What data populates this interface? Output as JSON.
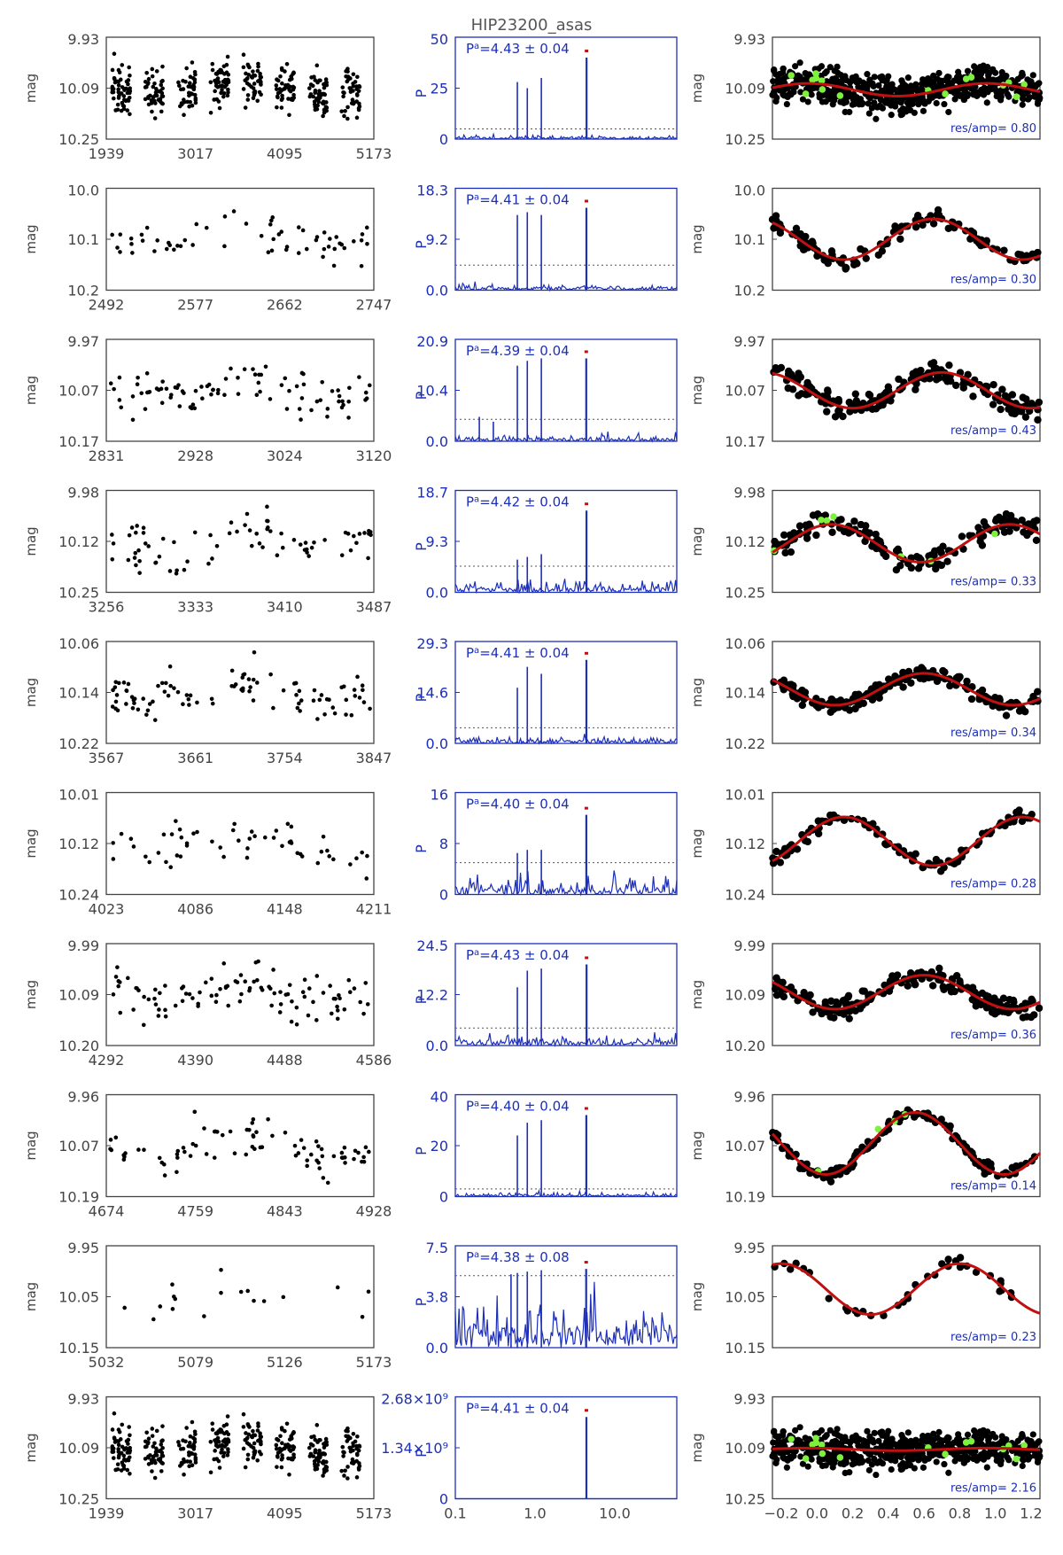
{
  "title": "HIP23200_asas",
  "colors": {
    "black": "#000000",
    "blue": "#1c2fb8",
    "red": "#c01010",
    "green": "#7cf23c",
    "frame": "#444444"
  },
  "labels": {
    "mag": "mag",
    "pn": "P",
    "pn_sub": "N",
    "res_prefix": "res/amp=",
    "period_prefix": "P",
    "period_sup": "a",
    "pm": "±"
  },
  "period_axis_ticks": [
    "0.1",
    "1.0",
    "10.0"
  ],
  "phase_axis_ticks": [
    "−0.2",
    "0.0",
    "0.2",
    "0.4",
    "0.6",
    "0.8",
    "1.0",
    "1.2"
  ],
  "chart_data": [
    {
      "type": "scatter",
      "kind": "light_curve",
      "x_ticks": [
        "1939",
        "3017",
        "4095",
        "5173"
      ],
      "y_ticks": [
        "9.93",
        "10.09",
        "10.25"
      ],
      "ylim": [
        10.25,
        9.93
      ],
      "n": 380,
      "seed": 11
    },
    {
      "type": "line",
      "kind": "periodogram",
      "y_ticks": [
        "50",
        "25",
        "0"
      ],
      "ylim": [
        0,
        50
      ],
      "peak_period": 4.43,
      "peak_power": 40,
      "noise": 1.5,
      "sig": 5,
      "side_peaks": [
        [
          0.6,
          28
        ],
        [
          0.8,
          25
        ],
        [
          1.2,
          30
        ]
      ],
      "period_value": "=4.43",
      "period_err": "0.04",
      "seed": 21
    },
    {
      "type": "scatter",
      "kind": "phased",
      "y_ticks": [
        "9.93",
        "10.09",
        "10.25"
      ],
      "ylim": [
        10.25,
        9.93
      ],
      "amp": 0.02,
      "offset": 10.095,
      "phase0": 0.45,
      "scatter": 0.05,
      "n": 600,
      "green": 16,
      "res_value": "0.80",
      "seed": 31
    },
    {
      "type": "scatter",
      "kind": "light_curve",
      "x_ticks": [
        "2492",
        "2577",
        "2662",
        "2747"
      ],
      "y_ticks": [
        "10.0",
        "10.1",
        "10.2"
      ],
      "ylim": [
        10.2,
        10.0
      ],
      "n": 60,
      "seed": 12
    },
    {
      "type": "line",
      "kind": "periodogram",
      "y_ticks": [
        "18.3",
        "9.2",
        "0.0"
      ],
      "ylim": [
        0,
        18.3
      ],
      "peak_period": 4.41,
      "peak_power": 14.8,
      "noise": 1.0,
      "sig": 4.5,
      "side_peaks": [
        [
          0.6,
          13.5
        ],
        [
          0.8,
          14.0
        ],
        [
          1.2,
          13.5
        ]
      ],
      "period_value": "=4.41",
      "period_err": "0.04",
      "seed": 22
    },
    {
      "type": "scatter",
      "kind": "phased",
      "y_ticks": [
        "10.0",
        "10.1",
        "10.2"
      ],
      "ylim": [
        10.2,
        10.0
      ],
      "amp": 0.04,
      "offset": 10.1,
      "phase0": 0.15,
      "scatter": 0.015,
      "n": 120,
      "green": 0,
      "res_value": "0.30",
      "seed": 32
    },
    {
      "type": "scatter",
      "kind": "light_curve",
      "x_ticks": [
        "2831",
        "2928",
        "3024",
        "3120"
      ],
      "y_ticks": [
        "9.97",
        "10.07",
        "10.17"
      ],
      "ylim": [
        10.17,
        9.97
      ],
      "n": 90,
      "seed": 13
    },
    {
      "type": "line",
      "kind": "periodogram",
      "y_ticks": [
        "20.9",
        "10.4",
        "0.0"
      ],
      "ylim": [
        0,
        20.9
      ],
      "peak_period": 4.39,
      "peak_power": 17,
      "noise": 1.2,
      "sig": 4.5,
      "side_peaks": [
        [
          0.6,
          15.5
        ],
        [
          0.8,
          16.5
        ],
        [
          1.2,
          17
        ],
        [
          0.3,
          4
        ],
        [
          0.2,
          5
        ]
      ],
      "period_value": "=4.39",
      "period_err": "0.04",
      "seed": 23
    },
    {
      "type": "scatter",
      "kind": "phased",
      "y_ticks": [
        "9.97",
        "10.07",
        "10.17"
      ],
      "ylim": [
        10.17,
        9.97
      ],
      "amp": 0.035,
      "offset": 10.07,
      "phase0": 0.2,
      "scatter": 0.02,
      "n": 180,
      "green": 0,
      "res_value": "0.43",
      "seed": 33
    },
    {
      "type": "scatter",
      "kind": "light_curve",
      "x_ticks": [
        "3256",
        "3333",
        "3410",
        "3487"
      ],
      "y_ticks": [
        "9.98",
        "10.12",
        "10.25"
      ],
      "ylim": [
        10.25,
        9.98
      ],
      "n": 75,
      "seed": 14
    },
    {
      "type": "line",
      "kind": "periodogram",
      "y_ticks": [
        "18.7",
        "9.3",
        "0.0"
      ],
      "ylim": [
        0,
        18.7
      ],
      "peak_period": 4.42,
      "peak_power": 15,
      "noise": 2.0,
      "sig": 4.8,
      "side_peaks": [
        [
          0.6,
          6
        ],
        [
          0.8,
          6.5
        ],
        [
          1.2,
          7
        ]
      ],
      "period_value": "=4.42",
      "period_err": "0.04",
      "seed": 24
    },
    {
      "type": "scatter",
      "kind": "phased",
      "y_ticks": [
        "9.98",
        "10.12",
        "10.25"
      ],
      "ylim": [
        10.25,
        9.98
      ],
      "amp": 0.05,
      "offset": 10.12,
      "phase0": 0.58,
      "scatter": 0.03,
      "n": 150,
      "green": 7,
      "res_value": "0.33",
      "seed": 34
    },
    {
      "type": "scatter",
      "kind": "light_curve",
      "x_ticks": [
        "3567",
        "3661",
        "3754",
        "3847"
      ],
      "y_ticks": [
        "10.06",
        "10.14",
        "10.22"
      ],
      "ylim": [
        10.22,
        10.06
      ],
      "n": 95,
      "seed": 15
    },
    {
      "type": "line",
      "kind": "periodogram",
      "y_ticks": [
        "29.3",
        "14.6",
        "0.0"
      ],
      "ylim": [
        0,
        29.3
      ],
      "peak_period": 4.41,
      "peak_power": 24,
      "noise": 1.6,
      "sig": 4.5,
      "side_peaks": [
        [
          0.6,
          16
        ],
        [
          0.8,
          22
        ],
        [
          1.2,
          20
        ]
      ],
      "period_value": "=4.41",
      "period_err": "0.04",
      "seed": 25
    },
    {
      "type": "scatter",
      "kind": "phased",
      "y_ticks": [
        "10.06",
        "10.14",
        "10.22"
      ],
      "ylim": [
        10.22,
        10.06
      ],
      "amp": 0.025,
      "offset": 10.135,
      "phase0": 0.1,
      "scatter": 0.012,
      "n": 200,
      "green": 0,
      "res_value": "0.34",
      "seed": 35
    },
    {
      "type": "scatter",
      "kind": "light_curve",
      "x_ticks": [
        "4023",
        "4086",
        "4148",
        "4211"
      ],
      "y_ticks": [
        "10.01",
        "10.12",
        "10.24"
      ],
      "ylim": [
        10.24,
        10.01
      ],
      "n": 55,
      "seed": 16
    },
    {
      "type": "line",
      "kind": "periodogram",
      "y_ticks": [
        "16",
        "8",
        "0"
      ],
      "ylim": [
        0,
        16
      ],
      "peak_period": 4.4,
      "peak_power": 12.5,
      "noise": 2.2,
      "sig": 5.0,
      "side_peaks": [
        [
          0.6,
          6.5
        ],
        [
          0.8,
          7
        ],
        [
          1.2,
          7
        ]
      ],
      "period_value": "=4.40",
      "period_err": "0.04",
      "seed": 26
    },
    {
      "type": "scatter",
      "kind": "phased",
      "y_ticks": [
        "10.01",
        "10.12",
        "10.24"
      ],
      "ylim": [
        10.24,
        10.01
      ],
      "amp": 0.055,
      "offset": 10.12,
      "phase0": 0.65,
      "scatter": 0.015,
      "n": 110,
      "green": 0,
      "res_value": "0.28",
      "seed": 36
    },
    {
      "type": "scatter",
      "kind": "light_curve",
      "x_ticks": [
        "4292",
        "4390",
        "4488",
        "4586"
      ],
      "y_ticks": [
        "9.99",
        "10.09",
        "10.20"
      ],
      "ylim": [
        10.2,
        9.99
      ],
      "n": 100,
      "seed": 17
    },
    {
      "type": "line",
      "kind": "periodogram",
      "y_ticks": [
        "24.5",
        "12.2",
        "0.0"
      ],
      "ylim": [
        0,
        24.5
      ],
      "peak_period": 4.43,
      "peak_power": 19.5,
      "noise": 1.8,
      "sig": 4.2,
      "side_peaks": [
        [
          0.6,
          14
        ],
        [
          0.8,
          18
        ],
        [
          1.2,
          18.5
        ]
      ],
      "period_value": "=4.43",
      "period_err": "0.04",
      "seed": 27
    },
    {
      "type": "scatter",
      "kind": "phased",
      "y_ticks": [
        "9.99",
        "10.09",
        "10.20"
      ],
      "ylim": [
        10.2,
        9.99
      ],
      "amp": 0.035,
      "offset": 10.09,
      "phase0": 0.1,
      "scatter": 0.02,
      "n": 200,
      "green": 0,
      "res_value": "0.36",
      "seed": 37
    },
    {
      "type": "scatter",
      "kind": "light_curve",
      "x_ticks": [
        "4674",
        "4759",
        "4843",
        "4928"
      ],
      "y_ticks": [
        "9.96",
        "10.07",
        "10.19"
      ],
      "ylim": [
        10.19,
        9.96
      ],
      "n": 80,
      "seed": 18
    },
    {
      "type": "line",
      "kind": "periodogram",
      "y_ticks": [
        "40",
        "20",
        "0"
      ],
      "ylim": [
        0,
        40
      ],
      "peak_period": 4.4,
      "peak_power": 32,
      "noise": 1.5,
      "sig": 3.0,
      "side_peaks": [
        [
          0.6,
          24
        ],
        [
          0.8,
          29
        ],
        [
          1.2,
          30
        ]
      ],
      "period_value": "=4.40",
      "period_err": "0.04",
      "seed": 28
    },
    {
      "type": "scatter",
      "kind": "phased",
      "y_ticks": [
        "9.96",
        "10.07",
        "10.19"
      ],
      "ylim": [
        10.19,
        9.96
      ],
      "amp": 0.07,
      "offset": 10.07,
      "phase0": 0.05,
      "scatter": 0.012,
      "n": 160,
      "green": 4,
      "res_value": "0.14",
      "seed": 38
    },
    {
      "type": "scatter",
      "kind": "light_curve",
      "x_ticks": [
        "5032",
        "5079",
        "5126",
        "5173"
      ],
      "y_ticks": [
        "9.95",
        "10.05",
        "10.15"
      ],
      "ylim": [
        10.15,
        9.95
      ],
      "n": 18,
      "seed": 19
    },
    {
      "type": "line",
      "kind": "periodogram",
      "y_ticks": [
        "7.5",
        "3.8",
        "0.0"
      ],
      "ylim": [
        0,
        7.5
      ],
      "peak_period": 4.38,
      "peak_power": 5.8,
      "noise": 2.8,
      "sig": 5.3,
      "side_peaks": [
        [
          0.6,
          5.5
        ],
        [
          0.8,
          5.6
        ],
        [
          1.2,
          5.7
        ],
        [
          0.5,
          5.4
        ]
      ],
      "period_value": "=4.38",
      "period_err": "0.08",
      "seed": 29
    },
    {
      "type": "scatter",
      "kind": "phased",
      "y_ticks": [
        "9.95",
        "10.05",
        "10.15"
      ],
      "ylim": [
        10.15,
        9.95
      ],
      "amp": 0.05,
      "offset": 10.035,
      "phase0": 0.3,
      "scatter": 0.01,
      "n": 36,
      "green": 0,
      "res_value": "0.23",
      "seed": 39
    },
    {
      "type": "scatter",
      "kind": "light_curve",
      "x_ticks": [
        "1939",
        "3017",
        "4095",
        "5173"
      ],
      "y_ticks": [
        "9.93",
        "10.09",
        "10.25"
      ],
      "ylim": [
        10.25,
        9.93
      ],
      "n": 380,
      "seed": 11
    },
    {
      "type": "line",
      "kind": "periodogram",
      "y_ticks": [
        "2.68×10⁹",
        "1.34×10⁹",
        "0"
      ],
      "ylim": [
        0,
        2.68
      ],
      "peak_period": 4.41,
      "peak_power": 2.15,
      "noise": 0,
      "sig": null,
      "side_peaks": [],
      "period_value": "=4.41",
      "period_err": "0.04",
      "seed": 30
    },
    {
      "type": "scatter",
      "kind": "phased",
      "y_ticks": [
        "9.93",
        "10.09",
        "10.25"
      ],
      "ylim": [
        10.25,
        9.93
      ],
      "amp": 0.004,
      "offset": 10.095,
      "phase0": 0.45,
      "scatter": 0.05,
      "n": 600,
      "green": 16,
      "res_value": "2.16",
      "res_red": true,
      "seed": 31
    }
  ]
}
